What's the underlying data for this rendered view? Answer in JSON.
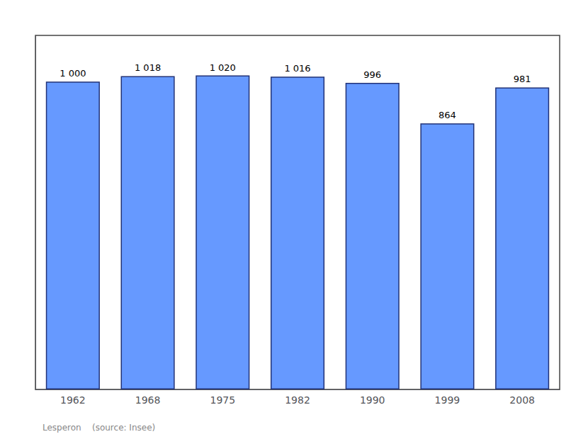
{
  "chart_data": {
    "type": "bar",
    "categories": [
      "1962",
      "1968",
      "1975",
      "1982",
      "1990",
      "1999",
      "2008"
    ],
    "values": [
      1000,
      1018,
      1020,
      1016,
      996,
      864,
      981
    ],
    "value_labels": [
      "1 000",
      "1 018",
      "1 020",
      "1 016",
      "996",
      "864",
      "981"
    ],
    "data_labels": true,
    "color": "#6699FF",
    "ylim": [
      0,
      1150
    ],
    "yticks": [],
    "tick_labels": "x",
    "grid": false,
    "annotations": [
      "Lesperon    (source: Insee)"
    ]
  }
}
